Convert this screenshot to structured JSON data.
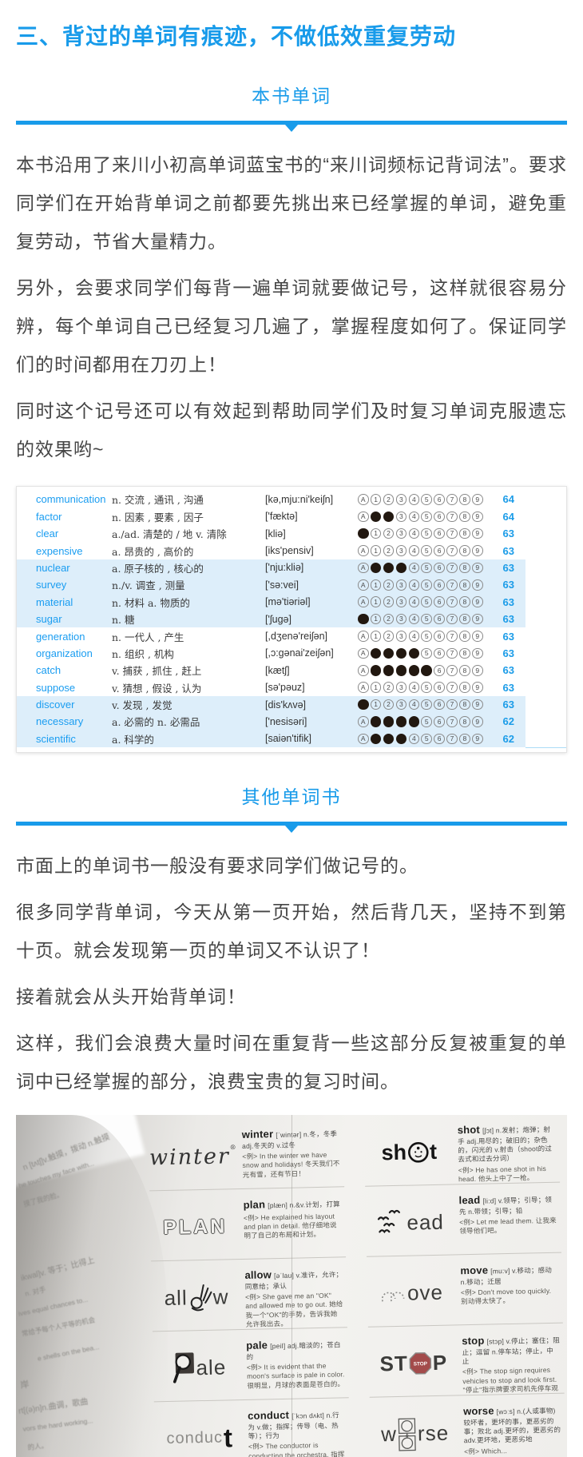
{
  "heading": "三、背过的单词有痕迹，不做低效重复劳动",
  "section1": {
    "label": "本书单词",
    "paragraphs": [
      "本书沿用了来川小初高单词蓝宝书的“来川词频标记背词法”。要求同学们在开始背单词之前都要先挑出来已经掌握的单词，避免重复劳动，节省大量精力。",
      "另外，会要求同学们每背一遍单词就要做记号，这样就很容易分辨，每个单词自己已经复习几遍了，掌握程度如何了。保证同学们的时间都用在刀刃上！",
      "同时这个记号还可以有效起到帮助同学们及时复习单词克服遗忘的效果哟~"
    ]
  },
  "vocab_table": {
    "mark_labels": [
      "A",
      "1",
      "2",
      "3",
      "4",
      "5",
      "6",
      "7",
      "8",
      "9"
    ],
    "rows": [
      {
        "word": "communication",
        "def": "n. 交流 , 通讯 , 沟通",
        "phon": "[kə,mju:ni'keiʃn]",
        "a_filled": false,
        "filled_nums": 0,
        "count": "64",
        "highlight": false
      },
      {
        "word": "factor",
        "def": "n. 因素 , 要素 , 因子",
        "phon": "['fæktə]",
        "a_filled": false,
        "filled_nums": 2,
        "count": "64",
        "highlight": false
      },
      {
        "word": "clear",
        "def": "a./ad. 清楚的 / 地 v. 清除",
        "phon": "[kliə]",
        "a_filled": true,
        "filled_nums": 0,
        "count": "63",
        "highlight": false
      },
      {
        "word": "expensive",
        "def": "a. 昂贵的 , 高价的",
        "phon": "[iks'pensiv]",
        "a_filled": false,
        "filled_nums": 0,
        "count": "63",
        "highlight": false
      },
      {
        "word": "nuclear",
        "def": "a. 原子核的 , 核心的",
        "phon": "['nju:kliə]",
        "a_filled": false,
        "filled_nums": 3,
        "count": "63",
        "highlight": true
      },
      {
        "word": "survey",
        "def": "n./v. 调查 , 测量",
        "phon": "['sə:vei]",
        "a_filled": false,
        "filled_nums": 0,
        "count": "63",
        "highlight": true
      },
      {
        "word": "material",
        "def": "n. 材料 a. 物质的",
        "phon": "[mə'tiəriəl]",
        "a_filled": false,
        "filled_nums": 0,
        "count": "63",
        "highlight": true
      },
      {
        "word": "sugar",
        "def": "n. 糖",
        "phon": "['ʃugə]",
        "a_filled": true,
        "filled_nums": 0,
        "count": "63",
        "highlight": true
      },
      {
        "word": "generation",
        "def": "n. 一代人 , 产生",
        "phon": "[,dʒenə'reiʃən]",
        "a_filled": false,
        "filled_nums": 0,
        "count": "63",
        "highlight": false
      },
      {
        "word": "organization",
        "def": "n. 组织 , 机构",
        "phon": "[,ɔ:gənai'zeiʃən]",
        "a_filled": false,
        "filled_nums": 4,
        "count": "63",
        "highlight": false
      },
      {
        "word": "catch",
        "def": "v. 捕获 , 抓住 , 赶上",
        "phon": "[kætʃ]",
        "a_filled": false,
        "filled_nums": 5,
        "count": "63",
        "highlight": false
      },
      {
        "word": "suppose",
        "def": "v. 猜想 , 假设 , 认为",
        "phon": "[sə'pəuz]",
        "a_filled": false,
        "filled_nums": 0,
        "count": "63",
        "highlight": false
      },
      {
        "word": "discover",
        "def": "v. 发现 , 发觉",
        "phon": "[dis'kʌvə]",
        "a_filled": true,
        "filled_nums": 0,
        "count": "63",
        "highlight": true
      },
      {
        "word": "necessary",
        "def": "a. 必需的 n. 必需品",
        "phon": "['nesisəri]",
        "a_filled": false,
        "filled_nums": 4,
        "count": "62",
        "highlight": true
      },
      {
        "word": "scientific",
        "def": "a. 科学的",
        "phon": "[saiən'tifik]",
        "a_filled": false,
        "filled_nums": 3,
        "count": "62",
        "highlight": true
      }
    ]
  },
  "section2": {
    "label": "其他单词书",
    "paragraphs": [
      "市面上的单词书一般没有要求同学们做记号的。",
      "很多同学背单词，今天从第一页开始，然后背几天，坚持不到第十页。就会发现第一页的单词又不认识了！",
      "接着就会从头开始背单词！",
      "这样，我们会浪费大量时间在重复背一些这部分反复被重复的单词中已经掌握的部分，浪费宝贵的复习时间。"
    ]
  },
  "book_photo": {
    "entries": [
      {
        "key": "winter",
        "word": "winter",
        "phon": "[ˈwintər]",
        "def": "n.冬，冬季 adj.冬天的 v.过冬",
        "example": "<例> In the winter we have snow and holidays! 冬天我们不光有雪，还有节日！",
        "art_icon": "winter-script-art-icon"
      },
      {
        "key": "shot",
        "word": "shot",
        "phon": "[ʃɔt]",
        "def": "n.发射；炮弹；射手 adj.用尽的；破旧的；杂色的，闪光的 v.射击（shoot的过去式和过去分词）",
        "example": "<例> He has one shot in his head. 他头上中了一枪。",
        "art_icon": "shot-face-art-icon"
      },
      {
        "key": "plan",
        "word": "plan",
        "phon": "[plæn]",
        "def": "n.&v.计划，打算",
        "example": "<例> He explained his layout and plan in detail. 他仔细地说明了自己的布局和计划。",
        "art_icon": "plan-blocks-art-icon"
      },
      {
        "key": "lead",
        "word": "lead",
        "phon": "[li:d]",
        "def": "v.领导；引导；领先 n.带领；引导；铅",
        "example": "<例> Let me lead them. 让我来领导他们吧。",
        "art_icon": "lead-birds-art-icon"
      },
      {
        "key": "allow",
        "word": "allow",
        "phon": "[əˈlau]",
        "def": "v.准许，允许；同意给；承认",
        "example": "<例> She gave me an \"OK\" and allowed me to go out. 她给我一个\"OK\"的手势，告诉我她允许我出去。",
        "art_icon": "allow-ok-hand-art-icon"
      },
      {
        "key": "move",
        "word": "move",
        "phon": "[mu:v]",
        "def": "v.移动；感动 n.移动；迁居",
        "example": "<例> Don't move too quickly. 别动得太快了。",
        "art_icon": "move-dotted-art-icon"
      },
      {
        "key": "pale",
        "word": "pale",
        "phon": "[peil]",
        "def": "adj.暗淡的；苍白的",
        "example": "<例> It is evident that the moon's surface is pale in color. 很明显，月球的表面是苍白的。",
        "art_icon": "pale-magnifier-art-icon"
      },
      {
        "key": "stop",
        "word": "stop",
        "phon": "[stɔp]",
        "def": "v.停止；塞住；阻止；逗留 n.停车站；停止，中止",
        "example": "<例> The stop sign requires vehicles to stop and look first. \"停止\"指示牌要求司机先停车观察。",
        "art_icon": "stop-sign-art-icon"
      },
      {
        "key": "conduct",
        "word": "conduct",
        "phon": "[ˈkɔn dʌkt]",
        "def": "n.行为 v.做；指挥；传导（电、热等）；行为",
        "example": "<例> The conductor is conducting the orchestra. 指挥家正在指挥管弦乐队。",
        "art_icon": "conduct-big-t-art-icon"
      },
      {
        "key": "worse",
        "word": "worse",
        "phon": "[wɔːs]",
        "def": "n.(人或事物)较坏者，更坏的事，更恶劣的事；败北 adj.更坏的，更恶劣的 adv.更坏地，更恶劣地",
        "example": "<例> Which...",
        "art_icon": "worse-boxes-art-icon"
      }
    ],
    "spine_fragments": [
      "n [tʌtʃ]v.触摸，拨动 n.触摸",
      "he touches my face with...",
      "摸了我的脸。",
      "ikwal]v. 等于；比得上",
      "n. 对手",
      "ives equal chances to...",
      "常给予每个人平等的机会",
      "rt[(ə)n]n.曲调，歌曲",
      "vors the hard working...",
      "的人。",
      "岸",
      "e shells on the bea..."
    ]
  },
  "colors": {
    "accent_blue": "#189bea",
    "word_blue": "#1a9df1",
    "count_blue": "#1b9ce8",
    "row_highlight": "#ddeefa",
    "body_text": "#454545",
    "mark_fill": "#221810",
    "stop_sign_red": "#a34b4b"
  }
}
